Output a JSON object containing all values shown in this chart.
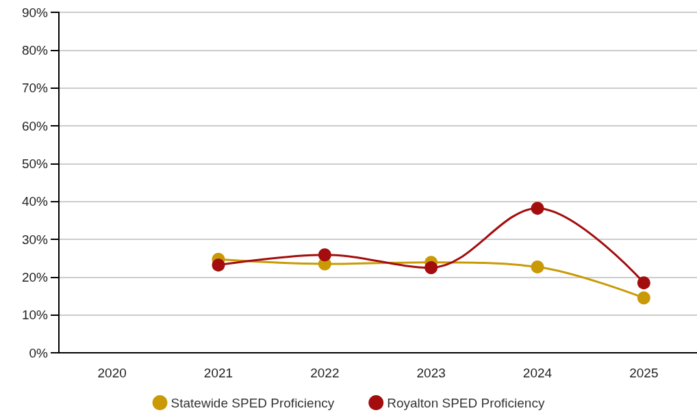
{
  "chart_data": {
    "type": "line",
    "categories": [
      "2020",
      "2021",
      "2022",
      "2023",
      "2024",
      "2025"
    ],
    "series": [
      {
        "name": "Statewide SPED Proficiency",
        "color": "#c99a06",
        "values": [
          null,
          24.7,
          23.5,
          23.9,
          22.7,
          14.5
        ]
      },
      {
        "name": "Royalton SPED Proficiency",
        "color": "#a30d0d",
        "values": [
          null,
          23.2,
          25.9,
          22.5,
          38.2,
          18.5
        ]
      }
    ],
    "ylim": [
      0,
      90
    ],
    "yticks": [
      {
        "value": 0,
        "label": "0%"
      },
      {
        "value": 10,
        "label": "10%"
      },
      {
        "value": 20,
        "label": "20%"
      },
      {
        "value": 30,
        "label": "30%"
      },
      {
        "value": 40,
        "label": "40%"
      },
      {
        "value": 50,
        "label": "50%"
      },
      {
        "value": 60,
        "label": "60%"
      },
      {
        "value": 70,
        "label": "70%"
      },
      {
        "value": 80,
        "label": "80%"
      },
      {
        "value": 90,
        "label": "90%"
      }
    ],
    "grid": "y",
    "legend": "bottom",
    "marker": "circle",
    "line_style": "solid"
  }
}
